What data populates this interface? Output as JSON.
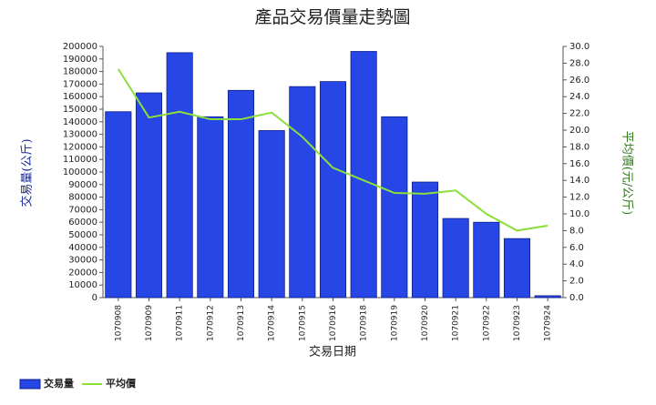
{
  "chart_data": {
    "type": "bar-line",
    "title": "產品交易價量走勢圖",
    "x_label": "交易日期",
    "y_label": "交易量(公斤)",
    "y2_label": "平均價(元/公斤)",
    "categories": [
      "1070908",
      "1070909",
      "1070911",
      "1070912",
      "1070913",
      "1070914",
      "1070915",
      "1070916",
      "1070918",
      "1070919",
      "1070920",
      "1070921",
      "1070922",
      "1070923",
      "1070924"
    ],
    "series": [
      {
        "name": "交易量",
        "type": "bar",
        "color": "#2746e6",
        "values": [
          148000,
          163000,
          195000,
          144000,
          165000,
          133000,
          168000,
          172000,
          196000,
          144000,
          92000,
          63000,
          60000,
          47000,
          1500
        ]
      },
      {
        "name": "平均價",
        "type": "line",
        "axis": "y2",
        "color": "#8adf3a",
        "values": [
          27.3,
          21.5,
          22.2,
          21.3,
          21.3,
          22.1,
          19.2,
          15.5,
          14.0,
          12.5,
          12.4,
          12.8,
          10.0,
          8.0,
          8.6
        ]
      }
    ],
    "ylim": [
      0,
      200000
    ],
    "yticks": [
      0,
      10000,
      20000,
      30000,
      40000,
      50000,
      60000,
      70000,
      80000,
      90000,
      100000,
      110000,
      120000,
      130000,
      140000,
      150000,
      160000,
      170000,
      180000,
      190000,
      200000
    ],
    "y2lim": [
      0,
      30
    ],
    "y2ticks": [
      {
        "value": 0,
        "label": "0.0"
      },
      {
        "value": 2,
        "label": "2.0"
      },
      {
        "value": 4,
        "label": "4.0"
      },
      {
        "value": 6,
        "label": "6.0"
      },
      {
        "value": 8,
        "label": "8.0"
      },
      {
        "value": 10,
        "label": "10.0"
      },
      {
        "value": 12,
        "label": "12.0"
      },
      {
        "value": 14,
        "label": "14.0"
      },
      {
        "value": 16,
        "label": "16.0"
      },
      {
        "value": 18,
        "label": "18.0"
      },
      {
        "value": 20,
        "label": "20.0"
      },
      {
        "value": 22,
        "label": "22.0"
      },
      {
        "value": 24,
        "label": "24.0"
      },
      {
        "value": 26,
        "label": "26.0"
      },
      {
        "value": 28,
        "label": "28.0"
      },
      {
        "value": 30,
        "label": "30.0"
      }
    ],
    "legend": "bottom-left"
  }
}
